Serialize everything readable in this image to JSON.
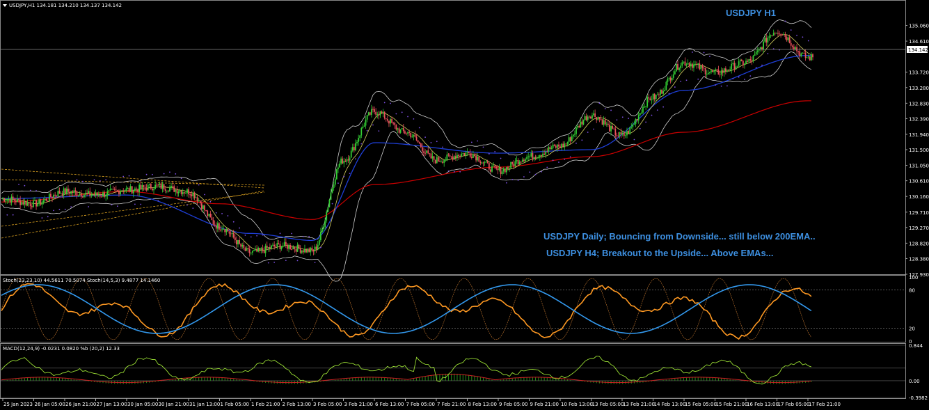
{
  "main_pane": {
    "header": "USDJPY,H1  134.181 134.210 134.137 134.142",
    "title": "USDJPY H1",
    "annotation_1": "USDJPY Daily; Bouncing from Downside... still below 200EMA..",
    "annotation_2": "USDJPY H4; Breakout to the Upside... Above EMAs...",
    "current_price": "134.142",
    "price_ticks": [
      "135.060",
      "134.610",
      "133.720",
      "133.280",
      "132.830",
      "132.390",
      "131.940",
      "131.500",
      "131.050",
      "130.610",
      "130.160",
      "129.710",
      "129.270",
      "128.820",
      "128.380",
      "127.930"
    ],
    "price_range": [
      127.93,
      135.35
    ],
    "colors": {
      "bull": "#33cc33",
      "bear": "#e8505b",
      "ema200": "#cc0000",
      "ema50": "#1f3fd8",
      "bands": "#cfcfcf",
      "sar": "#7b4fe0",
      "trend": "#d9a020"
    }
  },
  "stoch_pane": {
    "header": "Stoch(23,23,10) 44.5611 70.5074  Stoch(14,5,3) 9.4877 14.1460",
    "ticks": [
      "100",
      "80",
      "20",
      "0"
    ],
    "colors": {
      "fast": "#ff9922",
      "slow": "#3399ee"
    }
  },
  "macd_pane": {
    "header": "MACD(12,24,9) -0.0231 0.0820  %b (20,2) 12.33",
    "ticks": [
      "0.844",
      "0.00",
      "-0.3982"
    ],
    "colors": {
      "histogram": "#2a8f1a",
      "signal": "#cc2222",
      "pctb": "#99dd33"
    }
  },
  "time_axis": [
    "25 Jan 2023",
    "26 Jan 05:00",
    "26 Jan 21:00",
    "27 Jan 13:00",
    "30 Jan 05:00",
    "30 Jan 21:00",
    "31 Jan 13:00",
    "1 Feb 05:00",
    "1 Feb 21:00",
    "2 Feb 13:00",
    "3 Feb 05:00",
    "3 Feb 21:00",
    "6 Feb 13:00",
    "7 Feb 05:00",
    "7 Feb 21:00",
    "8 Feb 13:00",
    "9 Feb 05:00",
    "9 Feb 21:00",
    "10 Feb 13:00",
    "13 Feb 05:00",
    "13 Feb 21:00",
    "14 Feb 13:00",
    "15 Feb 05:00",
    "15 Feb 21:00",
    "16 Feb 13:00",
    "17 Feb 05:00",
    "17 Feb 21:00"
  ],
  "chart_data": {
    "type": "candlestick",
    "symbol": "USDJPY",
    "timeframe": "H1",
    "last_ohlc": {
      "open": 134.181,
      "high": 134.21,
      "low": 134.137,
      "close": 134.142
    },
    "price_path_key_points": [
      {
        "x": "25 Jan 2023",
        "price": 130.1
      },
      {
        "x": "26 Jan 05:00",
        "price": 129.95
      },
      {
        "x": "26 Jan 21:00",
        "price": 130.3
      },
      {
        "x": "27 Jan 13:00",
        "price": 130.2
      },
      {
        "x": "30 Jan 05:00",
        "price": 130.35
      },
      {
        "x": "30 Jan 21:00",
        "price": 130.45
      },
      {
        "x": "31 Jan 13:00",
        "price": 130.3
      },
      {
        "x": "1 Feb 05:00",
        "price": 129.3
      },
      {
        "x": "1 Feb 21:00",
        "price": 128.55
      },
      {
        "x": "2 Feb 13:00",
        "price": 128.75
      },
      {
        "x": "3 Feb 05:00",
        "price": 128.6
      },
      {
        "x": "3 Feb 21:00",
        "price": 131.2
      },
      {
        "x": "6 Feb 13:00",
        "price": 132.6
      },
      {
        "x": "7 Feb 05:00",
        "price": 132.0
      },
      {
        "x": "7 Feb 21:00",
        "price": 131.2
      },
      {
        "x": "8 Feb 13:00",
        "price": 131.4
      },
      {
        "x": "9 Feb 05:00",
        "price": 130.9
      },
      {
        "x": "9 Feb 21:00",
        "price": 131.3
      },
      {
        "x": "10 Feb 13:00",
        "price": 131.6
      },
      {
        "x": "13 Feb 05:00",
        "price": 132.5
      },
      {
        "x": "13 Feb 21:00",
        "price": 131.9
      },
      {
        "x": "14 Feb 13:00",
        "price": 133.0
      },
      {
        "x": "15 Feb 05:00",
        "price": 134.0
      },
      {
        "x": "15 Feb 21:00",
        "price": 133.7
      },
      {
        "x": "16 Feb 13:00",
        "price": 134.0
      },
      {
        "x": "17 Feb 05:00",
        "price": 134.9
      },
      {
        "x": "17 Feb 21:00",
        "price": 134.142
      }
    ],
    "ema200": [
      {
        "x": "25 Jan 2023",
        "price": 130.0
      },
      {
        "x": "30 Jan 05:00",
        "price": 130.3
      },
      {
        "x": "1 Feb 05:00",
        "price": 129.95
      },
      {
        "x": "3 Feb 05:00",
        "price": 129.5
      },
      {
        "x": "6 Feb 13:00",
        "price": 130.5
      },
      {
        "x": "9 Feb 05:00",
        "price": 131.0
      },
      {
        "x": "13 Feb 05:00",
        "price": 131.3
      },
      {
        "x": "15 Feb 05:00",
        "price": 132.0
      },
      {
        "x": "17 Feb 21:00",
        "price": 132.9
      }
    ],
    "ema50": [
      {
        "x": "25 Jan 2023",
        "price": 130.1
      },
      {
        "x": "30 Jan 05:00",
        "price": 130.2
      },
      {
        "x": "1 Feb 21:00",
        "price": 129.1
      },
      {
        "x": "3 Feb 05:00",
        "price": 128.9
      },
      {
        "x": "6 Feb 13:00",
        "price": 131.7
      },
      {
        "x": "9 Feb 05:00",
        "price": 131.4
      },
      {
        "x": "13 Feb 05:00",
        "price": 131.5
      },
      {
        "x": "15 Feb 05:00",
        "price": 133.2
      },
      {
        "x": "17 Feb 21:00",
        "price": 134.2
      }
    ]
  }
}
